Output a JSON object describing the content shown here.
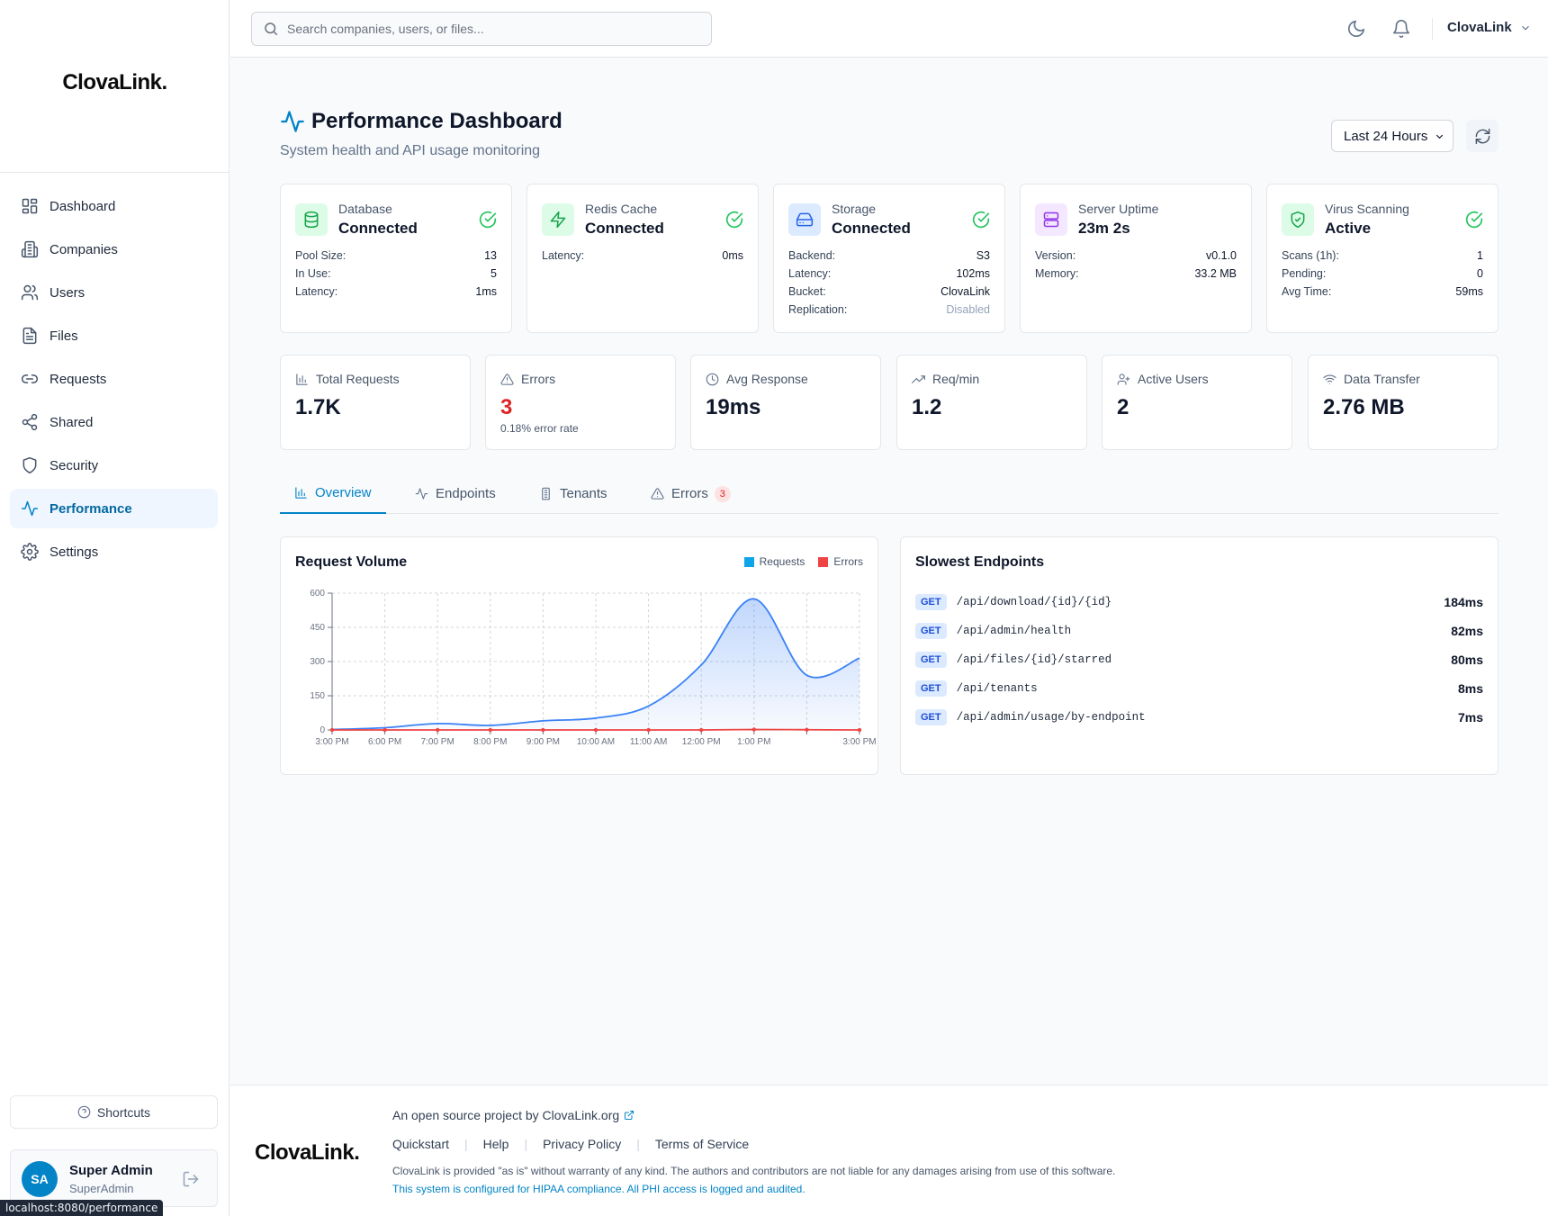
{
  "app": {
    "logo_text": "ClovaLink."
  },
  "sidebar": {
    "items": [
      {
        "label": "Dashboard",
        "icon": "grid-icon"
      },
      {
        "label": "Companies",
        "icon": "building-icon"
      },
      {
        "label": "Users",
        "icon": "users-icon"
      },
      {
        "label": "Files",
        "icon": "file-icon"
      },
      {
        "label": "Requests",
        "icon": "link-icon"
      },
      {
        "label": "Shared",
        "icon": "share-icon"
      },
      {
        "label": "Security",
        "icon": "shield-icon"
      },
      {
        "label": "Performance",
        "icon": "activity-icon",
        "active": true
      },
      {
        "label": "Settings",
        "icon": "gear-icon"
      }
    ],
    "shortcuts_label": "Shortcuts",
    "user": {
      "initials": "SA",
      "name": "Super Admin",
      "role": "SuperAdmin"
    }
  },
  "status_bar": {
    "url": "localhost:8080/performance"
  },
  "topbar": {
    "search_placeholder": "Search companies, users, or files...",
    "org_name": "ClovaLink"
  },
  "page": {
    "title": "Performance Dashboard",
    "subtitle": "System health and API usage monitoring",
    "range_label": "Last 24 Hours"
  },
  "services": [
    {
      "name": "Database",
      "status": "Connected",
      "icon": "database-icon",
      "rows": [
        {
          "k": "Pool Size:",
          "v": "13"
        },
        {
          "k": "In Use:",
          "v": "5"
        },
        {
          "k": "Latency:",
          "v": "1ms"
        }
      ]
    },
    {
      "name": "Redis Cache",
      "status": "Connected",
      "icon": "zap-icon",
      "rows": [
        {
          "k": "Latency:",
          "v": "0ms"
        }
      ]
    },
    {
      "name": "Storage",
      "status": "Connected",
      "icon": "hard-drive-icon",
      "rows": [
        {
          "k": "Backend:",
          "v": "S3"
        },
        {
          "k": "Latency:",
          "v": "102ms"
        },
        {
          "k": "Bucket:",
          "v": "ClovaLink"
        },
        {
          "k": "Replication:",
          "v": "Disabled"
        }
      ]
    },
    {
      "name": "Server Uptime",
      "status": "23m 2s",
      "icon": "server-icon",
      "rows": [
        {
          "k": "Version:",
          "v": "v0.1.0"
        },
        {
          "k": "Memory:",
          "v": "33.2 MB"
        }
      ]
    },
    {
      "name": "Virus Scanning",
      "status": "Active",
      "icon": "shield-check-icon",
      "rows": [
        {
          "k": "Scans (1h):",
          "v": "1"
        },
        {
          "k": "Pending:",
          "v": "0"
        },
        {
          "k": "Avg Time:",
          "v": "59ms"
        }
      ]
    }
  ],
  "stats": [
    {
      "label": "Total Requests",
      "value": "1.7K",
      "icon": "bar-chart-icon"
    },
    {
      "label": "Errors",
      "value": "3",
      "sub": "0.18% error rate",
      "icon": "alert-triangle-icon"
    },
    {
      "label": "Avg Response",
      "value": "19ms",
      "icon": "clock-icon"
    },
    {
      "label": "Req/min",
      "value": "1.2",
      "icon": "trending-up-icon"
    },
    {
      "label": "Active Users",
      "value": "2",
      "icon": "user-icon"
    },
    {
      "label": "Data Transfer",
      "value": "2.76 MB",
      "icon": "wifi-icon"
    }
  ],
  "tabs": [
    {
      "label": "Overview",
      "icon": "bar-chart-icon",
      "active": true
    },
    {
      "label": "Endpoints",
      "icon": "activity-icon"
    },
    {
      "label": "Tenants",
      "icon": "building-icon"
    },
    {
      "label": "Errors",
      "icon": "alert-triangle-icon",
      "badge": "3"
    }
  ],
  "request_volume": {
    "title": "Request Volume"
  },
  "chart_data": {
    "type": "area",
    "title": "Request Volume",
    "categories": [
      "3:00 PM",
      "6:00 PM",
      "7:00 PM",
      "8:00 PM",
      "9:00 PM",
      "10:00 AM",
      "11:00 AM",
      "12:00 PM",
      "1:00 PM",
      "",
      "3:00 PM"
    ],
    "series": [
      {
        "name": "Requests",
        "color": "#3b82f6",
        "values": [
          2,
          10,
          28,
          20,
          40,
          52,
          105,
          285,
          575,
          240,
          315
        ]
      },
      {
        "name": "Errors",
        "color": "#ef4444",
        "values": [
          0,
          0,
          0,
          0,
          0,
          0,
          0,
          0,
          2,
          1,
          0
        ]
      }
    ],
    "yticks": [
      "0",
      "150",
      "300",
      "450",
      "600"
    ],
    "ylim": [
      0,
      600
    ],
    "grid": true,
    "legend": "top-right"
  },
  "slowest": {
    "title": "Slowest Endpoints",
    "items": [
      {
        "method": "GET",
        "path": "/api/download/{id}/{id}",
        "time": "184ms"
      },
      {
        "method": "GET",
        "path": "/api/admin/health",
        "time": "82ms"
      },
      {
        "method": "GET",
        "path": "/api/files/{id}/starred",
        "time": "80ms"
      },
      {
        "method": "GET",
        "path": "/api/tenants",
        "time": "8ms"
      },
      {
        "method": "GET",
        "path": "/api/admin/usage/by-endpoint",
        "time": "7ms"
      }
    ]
  },
  "footer": {
    "logo_text": "ClovaLink.",
    "project_line": "An open source project by ClovaLink.org",
    "links": [
      "Quickstart",
      "Help",
      "Privacy Policy",
      "Terms of Service"
    ],
    "disclaimer": "ClovaLink is provided \"as is\" without warranty of any kind. The authors and contributors are not liable for any damages arising from use of this software.",
    "hipaa": "This system is configured for HIPAA compliance. All PHI access is logged and audited."
  }
}
